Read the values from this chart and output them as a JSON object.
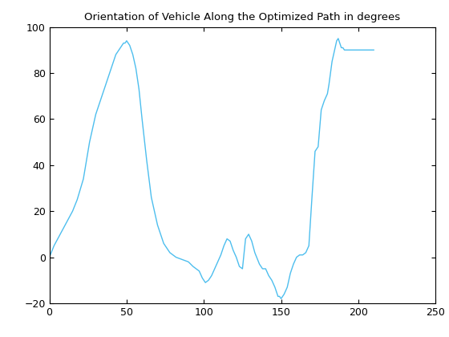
{
  "title": "Orientation of Vehicle Along the Optimized Path in degrees",
  "line_color": "#4DBEEE",
  "xlim": [
    0,
    250
  ],
  "ylim": [
    -20,
    100
  ],
  "xticks": [
    0,
    50,
    100,
    150,
    200,
    250
  ],
  "yticks": [
    -20,
    0,
    20,
    40,
    60,
    80,
    100
  ],
  "x": [
    0,
    3,
    7,
    11,
    15,
    18,
    22,
    26,
    30,
    33,
    36,
    39,
    41,
    43,
    45,
    46,
    47,
    48,
    49,
    50,
    51,
    52,
    54,
    56,
    58,
    60,
    63,
    66,
    70,
    74,
    78,
    82,
    86,
    90,
    93,
    95,
    97,
    99,
    101,
    103,
    105,
    107,
    109,
    111,
    113,
    115,
    117,
    119,
    121,
    123,
    125,
    127,
    129,
    131,
    133,
    136,
    138,
    140,
    142,
    144,
    146,
    148,
    149,
    150,
    152,
    154,
    156,
    158,
    160,
    162,
    164,
    166,
    168,
    170,
    172,
    174,
    176,
    178,
    180,
    181,
    182,
    183,
    184,
    185,
    186,
    187,
    188,
    189,
    190,
    191,
    193,
    195,
    198,
    201,
    205,
    210
  ],
  "y": [
    0,
    5,
    10,
    15,
    20,
    25,
    34,
    50,
    62,
    68,
    74,
    80,
    84,
    88,
    90,
    91,
    92,
    93,
    93,
    94,
    93,
    92,
    88,
    82,
    73,
    60,
    42,
    26,
    14,
    6,
    2,
    0,
    -1,
    -2,
    -4,
    -5,
    -6,
    -9,
    -11,
    -10,
    -8,
    -5,
    -2,
    1,
    5,
    8,
    7,
    3,
    0,
    -4,
    -5,
    8,
    10,
    7,
    2,
    -3,
    -5,
    -5,
    -8,
    -10,
    -13,
    -17,
    -17,
    -18,
    -16,
    -13,
    -7,
    -3,
    0,
    1,
    1,
    2,
    5,
    26,
    46,
    48,
    64,
    68,
    71,
    75,
    80,
    85,
    88,
    91,
    94,
    95,
    93,
    91,
    91,
    90,
    90,
    90,
    90,
    90,
    90,
    90
  ]
}
